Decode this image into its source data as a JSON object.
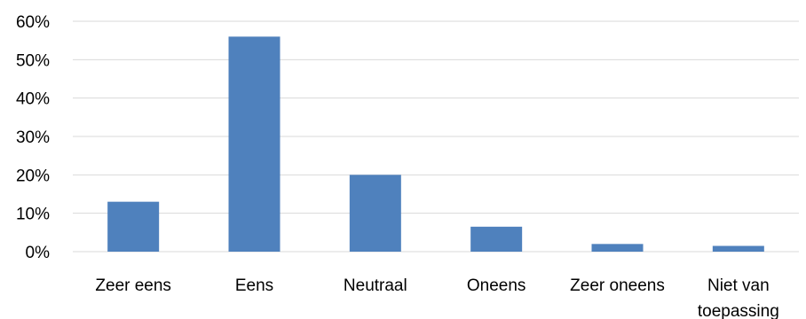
{
  "chart_data": {
    "type": "bar",
    "categories": [
      "Zeer eens",
      "Eens",
      "Neutraal",
      "Oneens",
      "Zeer oneens",
      "Niet van toepassing"
    ],
    "category_lines": [
      [
        "Zeer eens"
      ],
      [
        "Eens"
      ],
      [
        "Neutraal"
      ],
      [
        "Oneens"
      ],
      [
        "Zeer oneens"
      ],
      [
        "Niet van",
        "toepassing"
      ]
    ],
    "values": [
      13,
      56,
      20,
      6.5,
      2,
      1.5
    ],
    "ylim": [
      0,
      60
    ],
    "yticks": [
      0,
      10,
      20,
      30,
      40,
      50,
      60
    ],
    "ytick_labels": [
      "0%",
      "10%",
      "20%",
      "30%",
      "40%",
      "50%",
      "60%"
    ],
    "grid": true,
    "bar_color": "#4f81bd",
    "grid_color": "#d9d9d9"
  }
}
